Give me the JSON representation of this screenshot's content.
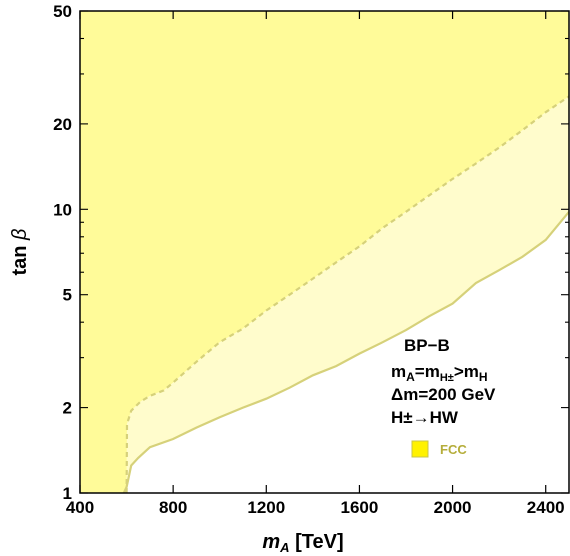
{
  "chart_data": {
    "type": "area",
    "xlabel": {
      "var": "m",
      "sub": "A",
      "unit": " [TeV]"
    },
    "ylabel": {
      "text": "tan ",
      "greek": "β"
    },
    "xlim": [
      400,
      2500
    ],
    "ylim": [
      1,
      50
    ],
    "yscale": "log",
    "xticks": [
      400,
      800,
      1200,
      1600,
      2000,
      2400
    ],
    "yticks": [
      1,
      2,
      5,
      10,
      20,
      50
    ],
    "grid": false,
    "colors": {
      "excluded_fill": "#fffb99",
      "band_fill": "#fffccc",
      "curve_stroke": "#d6d17a",
      "legend_fill": "#fff200",
      "legend_border": "#c8c44a",
      "legend_text": "#b5ad3a"
    },
    "annotation": {
      "line1": "BP−B",
      "line2": {
        "a": "m",
        "a_sub": "A",
        "eq": "=m",
        "b_sub": "H±",
        "gt": ">m",
        "c_sub": "H"
      },
      "line3": "Δm=200 GeV",
      "line4": "H±→HW"
    },
    "legend": [
      {
        "label": "FCC"
      }
    ],
    "series": [
      {
        "name": "FCC",
        "style": "dashed",
        "role": "central",
        "x": [
          600,
          602,
          620,
          660,
          700,
          760,
          800,
          900,
          1000,
          1100,
          1200,
          1300,
          1400,
          1500,
          1600,
          1700,
          1800,
          1900,
          2000,
          2100,
          2200,
          2300,
          2400,
          2500
        ],
        "y": [
          1.0,
          1.75,
          1.95,
          2.1,
          2.2,
          2.3,
          2.45,
          2.9,
          3.4,
          3.8,
          4.4,
          5.0,
          5.7,
          6.5,
          7.4,
          8.6,
          9.8,
          11.2,
          12.8,
          14.5,
          16.5,
          19.0,
          22.0,
          25.0
        ]
      },
      {
        "name": "FCC",
        "style": "solid",
        "role": "lower",
        "x": [
          588,
          600,
          620,
          650,
          700,
          800,
          900,
          1000,
          1100,
          1200,
          1300,
          1400,
          1500,
          1600,
          1700,
          1800,
          1900,
          2000,
          2100,
          2200,
          2300,
          2400,
          2500
        ],
        "y": [
          1.0,
          1.05,
          1.25,
          1.33,
          1.45,
          1.55,
          1.7,
          1.85,
          2.0,
          2.15,
          2.35,
          2.6,
          2.8,
          3.1,
          3.4,
          3.75,
          4.2,
          4.65,
          5.5,
          6.1,
          6.8,
          7.8,
          9.8
        ]
      }
    ]
  }
}
